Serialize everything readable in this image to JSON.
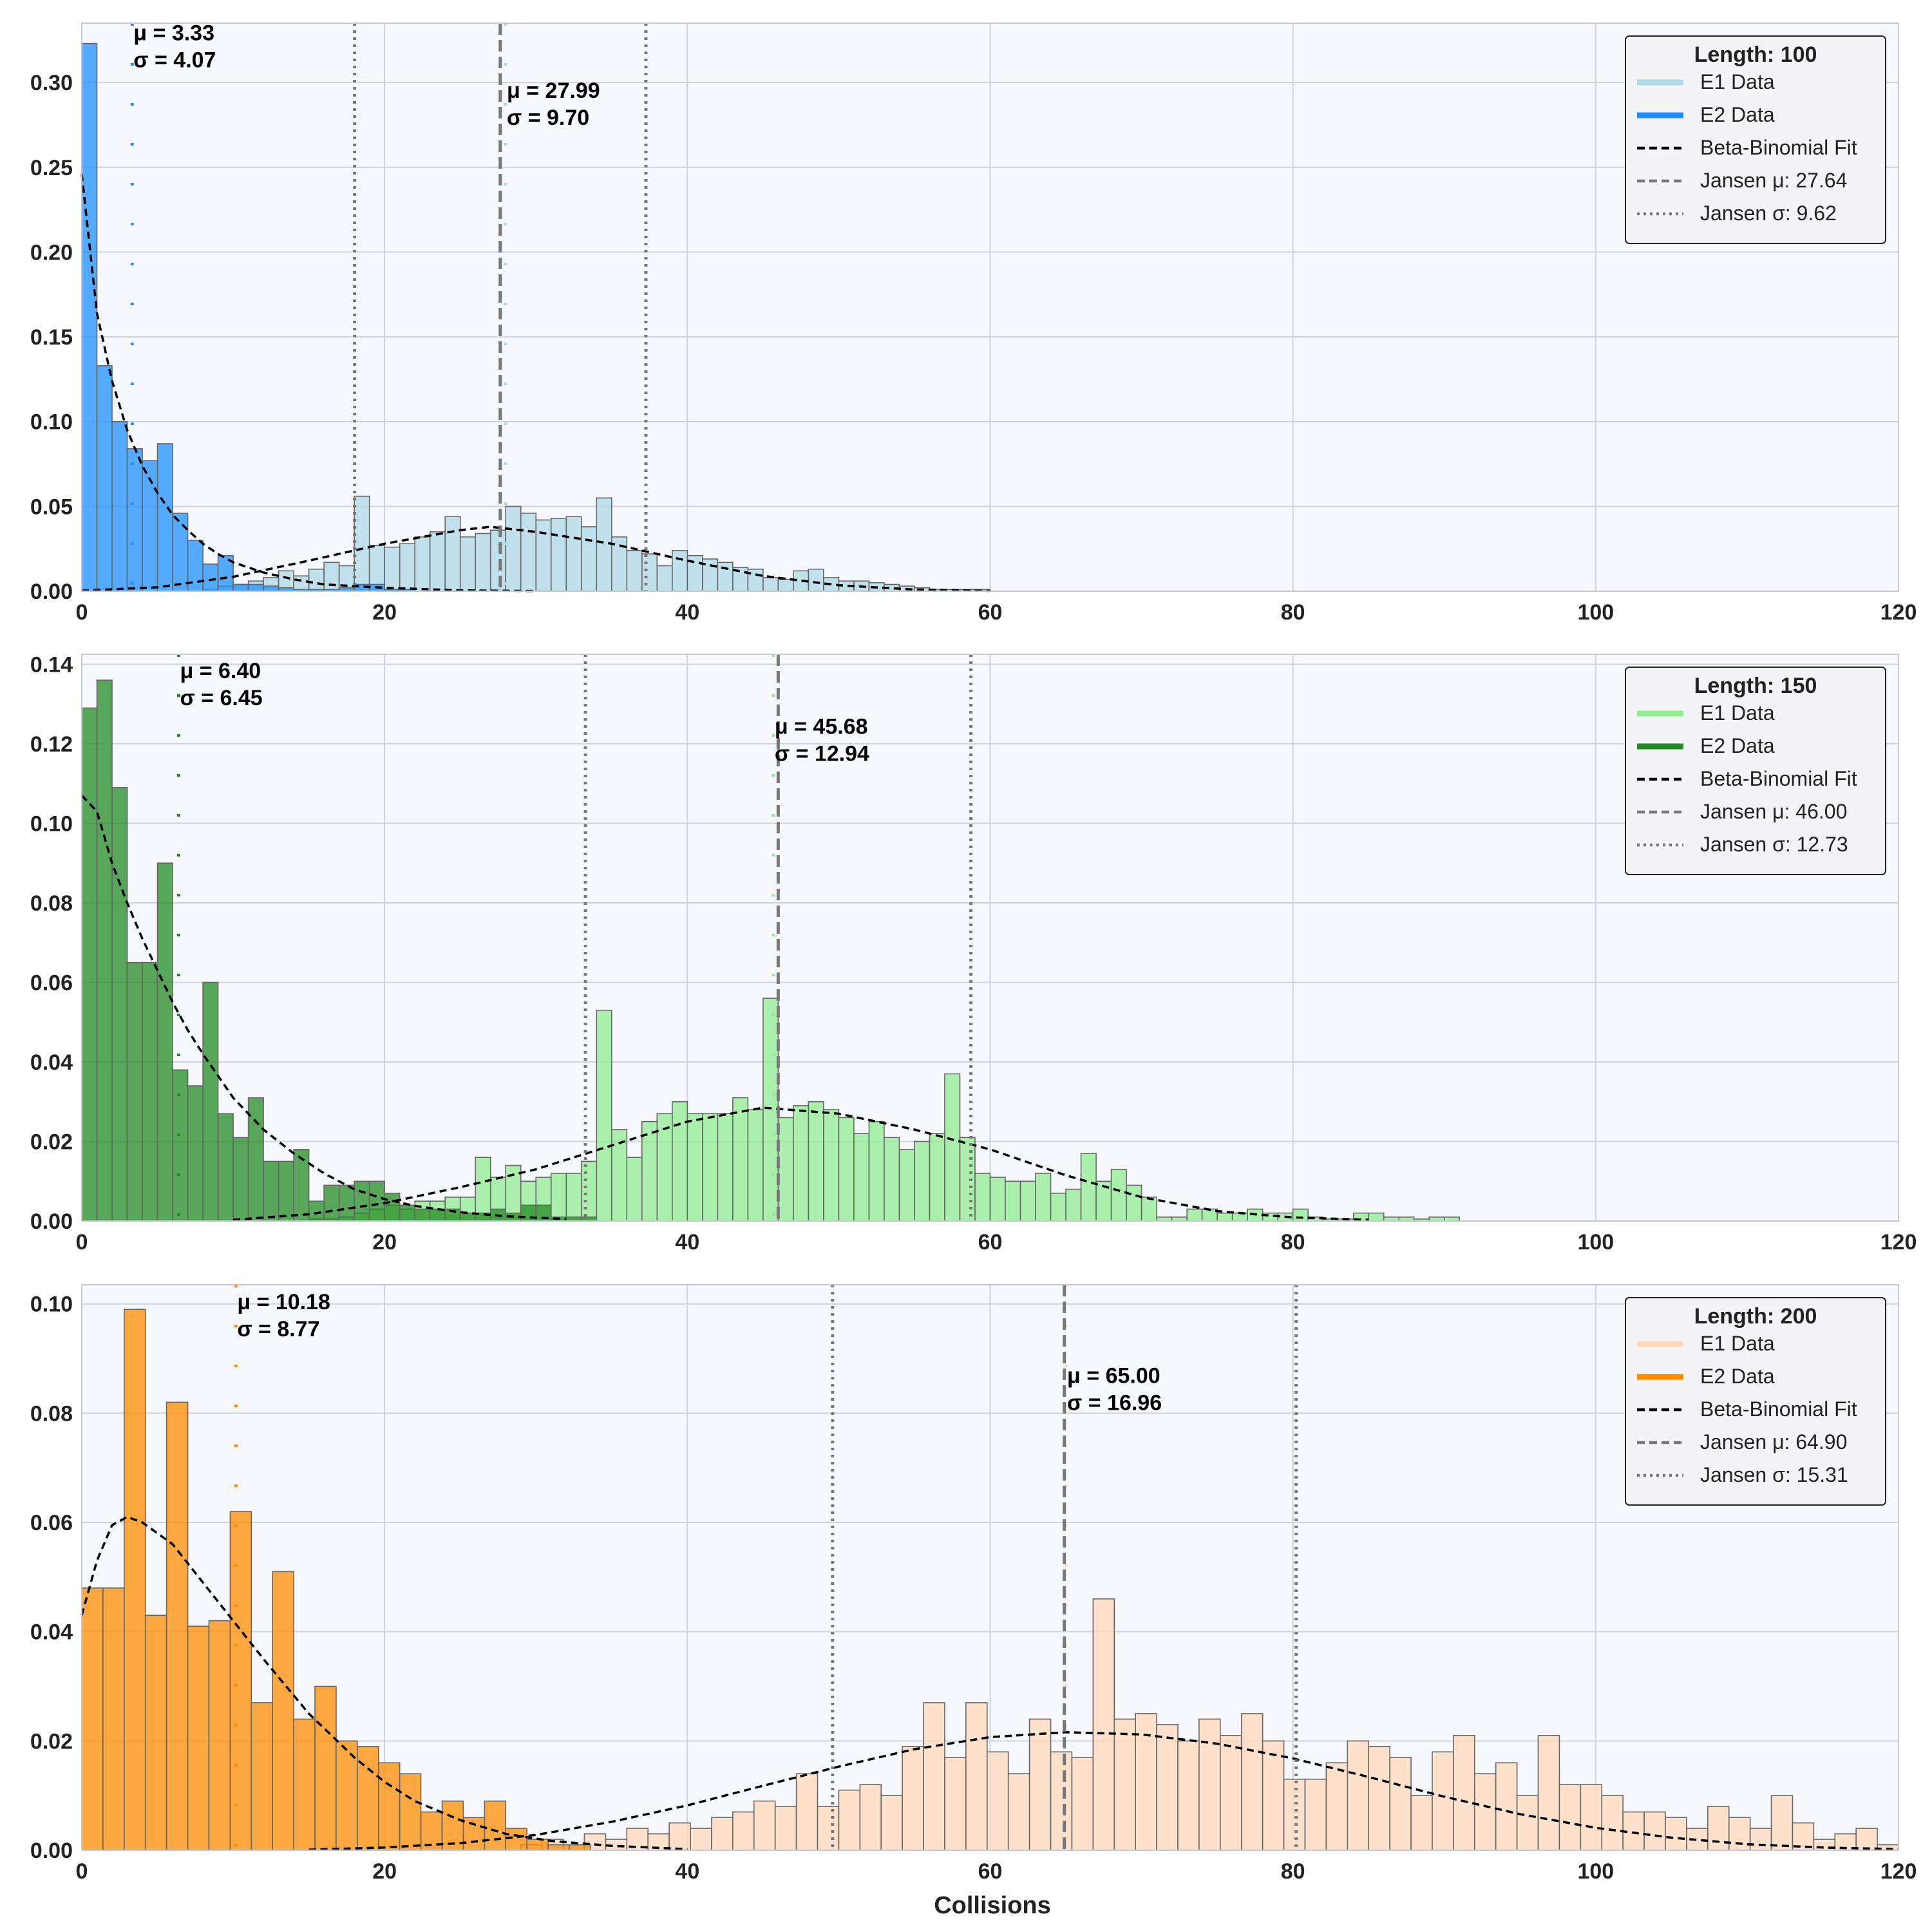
{
  "figure": {
    "xlabel": "Collisions",
    "background": "#f7f8fd",
    "grid_color": "#cfd1dd",
    "fit_color": "#000000",
    "jansen_color": "#777777"
  },
  "chart_data": [
    {
      "type": "bar",
      "subtype": "histogram",
      "legend_title": "Length: 100",
      "legend_position": "top-right",
      "xlim": [
        0,
        120
      ],
      "ylim": [
        0,
        0.335
      ],
      "xticks": [
        0,
        20,
        40,
        60,
        80,
        100,
        120
      ],
      "yticks": [
        0.0,
        0.05,
        0.1,
        0.15,
        0.2,
        0.25,
        0.3
      ],
      "ytick_labels": [
        "0.00",
        "0.05",
        "0.10",
        "0.15",
        "0.20",
        "0.25",
        "0.30"
      ],
      "grid": true,
      "bin_width": 1,
      "series": [
        {
          "name": "E1 Data",
          "color": "#add8e6",
          "bin_start": 0,
          "values": [
            0,
            0,
            0,
            0,
            0,
            0,
            0,
            0,
            0.001,
            0.003,
            0.004,
            0.006,
            0.008,
            0.012,
            0.009,
            0.013,
            0.017,
            0.015,
            0.056,
            0.027,
            0.026,
            0.028,
            0.032,
            0.035,
            0.044,
            0.032,
            0.034,
            0.036,
            0.05,
            0.046,
            0.042,
            0.043,
            0.044,
            0.038,
            0.055,
            0.032,
            0.024,
            0.022,
            0.015,
            0.024,
            0.021,
            0.019,
            0.017,
            0.014,
            0.013,
            0.008,
            0.007,
            0.012,
            0.013,
            0.008,
            0.006,
            0.006,
            0.005,
            0.004,
            0.003,
            0.002,
            0.001,
            0.001,
            0.001,
            0.001
          ]
        },
        {
          "name": "E2 Data",
          "color": "#1e90ff",
          "bin_start": 0,
          "values": [
            0.323,
            0.133,
            0.1,
            0.084,
            0.077,
            0.087,
            0.046,
            0.03,
            0.016,
            0.021,
            0.004,
            0.004,
            0.003,
            0.002,
            0.001,
            0.001,
            0.001,
            0.002,
            0.004,
            0.004,
            0.001,
            0.001
          ]
        }
      ],
      "fit": {
        "name": "Beta-Binomial Fit",
        "curves": [
          {
            "x": [
              0,
              1,
              2,
              3,
              4,
              5,
              6,
              7,
              8,
              9,
              10,
              12,
              14,
              16,
              18,
              20,
              25,
              30
            ],
            "y": [
              0.246,
              0.164,
              0.124,
              0.095,
              0.074,
              0.058,
              0.045,
              0.036,
              0.028,
              0.022,
              0.017,
              0.011,
              0.007,
              0.004,
              0.003,
              0.002,
              0.0005,
              0.0001
            ]
          },
          {
            "x": [
              0,
              5,
              10,
              15,
              20,
              25,
              27,
              30,
              35,
              40,
              45,
              50,
              55,
              60
            ],
            "y": [
              0.0003,
              0.0023,
              0.0085,
              0.018,
              0.028,
              0.036,
              0.038,
              0.035,
              0.028,
              0.018,
              0.009,
              0.0035,
              0.001,
              0.0002
            ]
          }
        ]
      },
      "annotations": [
        {
          "mu": "μ = 3.33",
          "sigma": "σ = 4.07",
          "x": 3.33,
          "y": 0.325
        },
        {
          "mu": "μ = 27.99",
          "sigma": "σ = 9.70",
          "x": 27.99,
          "y": 0.291
        }
      ],
      "empirical_mean_lines": [
        {
          "x": 3.33,
          "color": "#1e90ff"
        },
        {
          "x": 27.99,
          "color": "#add8e6"
        }
      ],
      "jansen": {
        "mu": 27.64,
        "sigma": 9.62,
        "mu_label": "Jansen μ: 27.64",
        "sigma_label": "Jansen σ: 9.62"
      }
    },
    {
      "type": "bar",
      "subtype": "histogram",
      "legend_title": "Length: 150",
      "legend_position": "top-right",
      "xlim": [
        0,
        120
      ],
      "ylim": [
        0,
        0.1425
      ],
      "xticks": [
        0,
        20,
        40,
        60,
        80,
        100,
        120
      ],
      "yticks": [
        0.0,
        0.02,
        0.04,
        0.06,
        0.08,
        0.1,
        0.12,
        0.14
      ],
      "ytick_labels": [
        "0.00",
        "0.02",
        "0.04",
        "0.06",
        "0.08",
        "0.10",
        "0.12",
        "0.14"
      ],
      "grid": true,
      "bin_width": 1,
      "series": [
        {
          "name": "E1 Data",
          "color": "#90ee90",
          "bin_start": 0,
          "values": [
            0,
            0,
            0,
            0,
            0,
            0,
            0,
            0,
            0,
            0,
            0,
            0,
            0,
            0,
            0,
            0.0005,
            0.0005,
            0.001,
            0.002,
            0.003,
            0.004,
            0.003,
            0.005,
            0.005,
            0.006,
            0.006,
            0.016,
            0.011,
            0.014,
            0.01,
            0.011,
            0.012,
            0.012,
            0.015,
            0.053,
            0.023,
            0.016,
            0.025,
            0.027,
            0.03,
            0.027,
            0.027,
            0.027,
            0.031,
            0.028,
            0.056,
            0.026,
            0.029,
            0.03,
            0.028,
            0.026,
            0.022,
            0.025,
            0.021,
            0.018,
            0.02,
            0.022,
            0.037,
            0.021,
            0.012,
            0.011,
            0.01,
            0.01,
            0.012,
            0.007,
            0.008,
            0.017,
            0.01,
            0.013,
            0.009,
            0.006,
            0.001,
            0.001,
            0.003,
            0.003,
            0.002,
            0.002,
            0.003,
            0.002,
            0.002,
            0.003,
            0.001,
            0.0005,
            0.0005,
            0.002,
            0.002,
            0.001,
            0.001,
            0.0005,
            0.001,
            0.001
          ]
        },
        {
          "name": "E2 Data",
          "color": "#228b22",
          "bin_start": 0,
          "values": [
            0.129,
            0.136,
            0.109,
            0.065,
            0.065,
            0.09,
            0.038,
            0.034,
            0.06,
            0.027,
            0.021,
            0.031,
            0.015,
            0.015,
            0.018,
            0.005,
            0.009,
            0.009,
            0.01,
            0.01,
            0.007,
            0.004,
            0.003,
            0.003,
            0.003,
            0.002,
            0.002,
            0.003,
            0.002,
            0.004,
            0.004,
            0.001,
            0.001,
            0.001
          ]
        }
      ],
      "fit": {
        "name": "Beta-Binomial Fit",
        "curves": [
          {
            "x": [
              0,
              1,
              2,
              3,
              4,
              5,
              6,
              7,
              8,
              10,
              12,
              14,
              16,
              18,
              20,
              22,
              25,
              28,
              32
            ],
            "y": [
              0.107,
              0.103,
              0.09,
              0.08,
              0.071,
              0.063,
              0.055,
              0.048,
              0.042,
              0.031,
              0.023,
              0.017,
              0.012,
              0.008,
              0.0055,
              0.0038,
              0.0022,
              0.0012,
              0.0005
            ]
          },
          {
            "x": [
              10,
              15,
              20,
              25,
              30,
              35,
              40,
              45,
              50,
              55,
              60,
              65,
              70,
              75,
              80,
              85
            ],
            "y": [
              0.0003,
              0.0017,
              0.0045,
              0.0085,
              0.013,
              0.019,
              0.025,
              0.0285,
              0.027,
              0.023,
              0.018,
              0.0115,
              0.006,
              0.0025,
              0.0009,
              0.0003
            ]
          }
        ]
      },
      "annotations": [
        {
          "mu": "μ = 6.40",
          "sigma": "σ = 6.45",
          "x": 6.4,
          "y": 0.1365
        },
        {
          "mu": "μ = 45.68",
          "sigma": "σ = 12.94",
          "x": 45.68,
          "y": 0.1225
        }
      ],
      "empirical_mean_lines": [
        {
          "x": 6.4,
          "color": "#228b22"
        },
        {
          "x": 45.68,
          "color": "#90ee90"
        }
      ],
      "jansen": {
        "mu": 46.0,
        "sigma": 12.73,
        "mu_label": "Jansen μ: 46.00",
        "sigma_label": "Jansen σ: 12.73"
      }
    },
    {
      "type": "bar",
      "subtype": "histogram",
      "legend_title": "Length: 200",
      "legend_position": "top-right",
      "xlim": [
        0,
        120
      ],
      "ylim": [
        0,
        0.1035
      ],
      "xticks": [
        0,
        20,
        40,
        60,
        80,
        100,
        120
      ],
      "yticks": [
        0.0,
        0.02,
        0.04,
        0.06,
        0.08,
        0.1
      ],
      "ytick_labels": [
        "0.00",
        "0.02",
        "0.04",
        "0.06",
        "0.08",
        "0.10"
      ],
      "grid": true,
      "bin_width": 1.4,
      "series": [
        {
          "name": "E1 Data",
          "color": "#ffdab9",
          "bin_start": 29,
          "values": [
            0.001,
            0.002,
            0.001,
            0.003,
            0.002,
            0.004,
            0.003,
            0.005,
            0.004,
            0.006,
            0.007,
            0.009,
            0.008,
            0.014,
            0.008,
            0.011,
            0.012,
            0.01,
            0.019,
            0.027,
            0.017,
            0.027,
            0.018,
            0.014,
            0.024,
            0.018,
            0.017,
            0.046,
            0.024,
            0.025,
            0.023,
            0.02,
            0.024,
            0.021,
            0.025,
            0.02,
            0.013,
            0.013,
            0.016,
            0.02,
            0.019,
            0.017,
            0.01,
            0.018,
            0.021,
            0.014,
            0.016,
            0.01,
            0.021,
            0.012,
            0.012,
            0.01,
            0.007,
            0.007,
            0.006,
            0.004,
            0.008,
            0.006,
            0.004,
            0.01,
            0.005,
            0.002,
            0.003,
            0.004,
            0.001,
            0.003,
            0.002,
            0.001
          ]
        },
        {
          "name": "E2 Data",
          "color": "#ff8c00",
          "bin_start": 0,
          "values": [
            0.048,
            0.048,
            0.099,
            0.043,
            0.082,
            0.041,
            0.042,
            0.062,
            0.027,
            0.051,
            0.024,
            0.03,
            0.02,
            0.019,
            0.016,
            0.014,
            0.007,
            0.009,
            0.006,
            0.009,
            0.004,
            0.002,
            0.001,
            0.001
          ]
        }
      ],
      "fit": {
        "name": "Beta-Binomial Fit",
        "curves": [
          {
            "x": [
              0,
              1,
              2,
              3,
              4,
              6,
              8,
              10,
              12,
              15,
              18,
              20,
              22,
              25,
              28,
              31,
              35,
              40
            ],
            "y": [
              0.043,
              0.053,
              0.0595,
              0.061,
              0.06,
              0.056,
              0.049,
              0.042,
              0.035,
              0.025,
              0.017,
              0.0125,
              0.009,
              0.0055,
              0.003,
              0.0017,
              0.0008,
              0.0002
            ]
          },
          {
            "x": [
              15,
              20,
              25,
              30,
              35,
              40,
              45,
              50,
              55,
              60,
              65,
              70,
              75,
              80,
              85,
              90,
              95,
              100,
              105,
              110,
              115,
              120
            ],
            "y": [
              0.0001,
              0.0005,
              0.0013,
              0.0028,
              0.0052,
              0.0082,
              0.0118,
              0.0153,
              0.0185,
              0.0207,
              0.0216,
              0.0212,
              0.0195,
              0.0168,
              0.0134,
              0.0098,
              0.0066,
              0.0041,
              0.0023,
              0.0011,
              0.0005,
              0.0002
            ]
          }
        ]
      },
      "annotations": [
        {
          "mu": "μ = 10.18",
          "sigma": "σ = 8.77",
          "x": 10.18,
          "y": 0.099
        },
        {
          "mu": "μ = 65.00",
          "sigma": "σ = 16.96",
          "x": 65.0,
          "y": 0.0855
        }
      ],
      "empirical_mean_lines": [
        {
          "x": 10.18,
          "color": "#ff8c00"
        },
        {
          "x": 65.0,
          "color": "#ffdab9"
        }
      ],
      "jansen": {
        "mu": 64.9,
        "sigma": 15.31,
        "mu_label": "Jansen μ: 64.90",
        "sigma_label": "Jansen σ: 15.31"
      }
    }
  ]
}
